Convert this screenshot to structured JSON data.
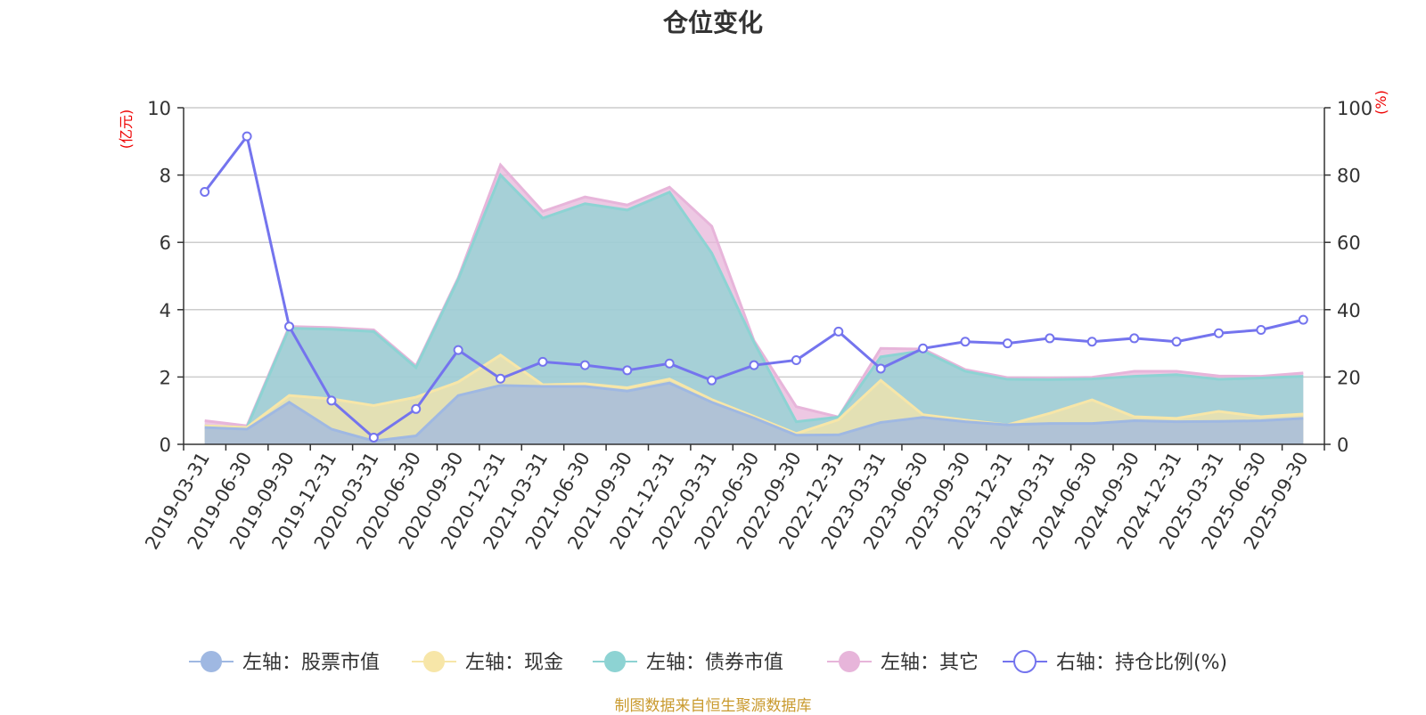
{
  "chart_data": {
    "type": "area",
    "title": "仓位变化",
    "left_unit": "(亿元)",
    "right_unit": "(%)",
    "ylim_left": [
      0,
      10
    ],
    "ylim_right": [
      0,
      100
    ],
    "yticks_left": [
      "0",
      "2",
      "4",
      "6",
      "8",
      "10"
    ],
    "yticks_right": [
      "0",
      "20",
      "40",
      "60",
      "80",
      "100"
    ],
    "categories": [
      "2019-03-31",
      "2019-06-30",
      "2019-09-30",
      "2019-12-31",
      "2020-03-31",
      "2020-06-30",
      "2020-09-30",
      "2020-12-31",
      "2021-03-31",
      "2021-06-30",
      "2021-09-30",
      "2021-12-31",
      "2022-03-31",
      "2022-06-30",
      "2022-09-30",
      "2022-12-31",
      "2023-03-31",
      "2023-06-30",
      "2023-09-30",
      "2023-12-31",
      "2024-03-31",
      "2024-06-30",
      "2024-09-30",
      "2024-12-31",
      "2025-03-31",
      "2025-06-30",
      "2025-09-30"
    ],
    "series": [
      {
        "name": "左轴：股票市值",
        "axis": "left",
        "kind": "stack",
        "color": "#9fb8e2",
        "values": [
          0.5,
          0.45,
          1.25,
          0.45,
          0.1,
          0.25,
          1.45,
          1.75,
          1.72,
          1.72,
          1.58,
          1.82,
          1.25,
          0.78,
          0.27,
          0.28,
          0.65,
          0.8,
          0.67,
          0.58,
          0.62,
          0.62,
          0.7,
          0.67,
          0.68,
          0.7,
          0.77
        ]
      },
      {
        "name": "左轴：现金",
        "axis": "left",
        "kind": "stack",
        "color": "#f7e6a8",
        "values": [
          0.05,
          0.05,
          0.2,
          0.9,
          1.05,
          1.15,
          0.4,
          0.9,
          0.05,
          0.08,
          0.1,
          0.12,
          0.08,
          0.05,
          0.05,
          0.45,
          1.25,
          0.08,
          0.05,
          0.0,
          0.3,
          0.7,
          0.12,
          0.1,
          0.3,
          0.12,
          0.13
        ]
      },
      {
        "name": "左轴：债券市值",
        "axis": "left",
        "kind": "stack",
        "color": "#8dd3d3",
        "values": [
          0.0,
          0.0,
          2.0,
          2.07,
          2.2,
          0.88,
          3.05,
          5.35,
          4.95,
          5.35,
          5.28,
          5.55,
          4.35,
          2.2,
          0.35,
          0.08,
          0.7,
          1.9,
          1.45,
          1.35,
          1.0,
          0.62,
          1.2,
          1.3,
          0.95,
          1.15,
          1.12
        ]
      },
      {
        "name": "左轴：其它",
        "axis": "left",
        "kind": "stack",
        "color": "#e7b5da",
        "values": [
          0.15,
          0.05,
          0.05,
          0.05,
          0.05,
          0.05,
          0.05,
          0.3,
          0.2,
          0.2,
          0.15,
          0.15,
          0.8,
          0.05,
          0.45,
          0.0,
          0.25,
          0.05,
          0.05,
          0.05,
          0.05,
          0.05,
          0.15,
          0.1,
          0.1,
          0.05,
          0.1
        ]
      },
      {
        "name": "右轴：持仓比例(%)",
        "axis": "right",
        "kind": "line",
        "color": "#7474ee",
        "values": [
          75,
          91.5,
          35,
          13,
          2,
          10.5,
          28,
          19.5,
          24.5,
          23.5,
          22,
          24,
          19,
          23.5,
          25,
          33.5,
          22.5,
          28.5,
          30.5,
          30,
          31.5,
          30.5,
          31.5,
          30.5,
          33,
          34,
          37
        ]
      }
    ]
  },
  "credit": "制图数据来自恒生聚源数据库"
}
